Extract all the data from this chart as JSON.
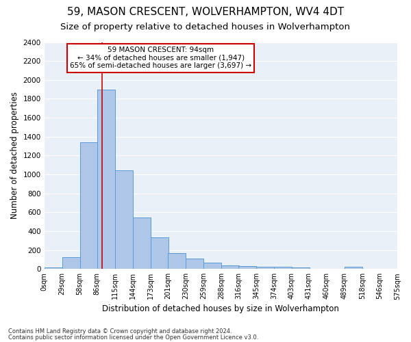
{
  "title1": "59, MASON CRESCENT, WOLVERHAMPTON, WV4 4DT",
  "title2": "Size of property relative to detached houses in Wolverhampton",
  "xlabel": "Distribution of detached houses by size in Wolverhampton",
  "ylabel": "Number of detached properties",
  "annotation_line1": "59 MASON CRESCENT: 94sqm",
  "annotation_line2": "← 34% of detached houses are smaller (1,947)",
  "annotation_line3": "65% of semi-detached houses are larger (3,697) →",
  "property_size_sqm": 94,
  "bin_edges": [
    0,
    29,
    58,
    86,
    115,
    144,
    173,
    201,
    230,
    259,
    288,
    316,
    345,
    374,
    403,
    431,
    460,
    489,
    518,
    546,
    575
  ],
  "bin_labels": [
    "0sqm",
    "29sqm",
    "58sqm",
    "86sqm",
    "115sqm",
    "144sqm",
    "173sqm",
    "201sqm",
    "230sqm",
    "259sqm",
    "288sqm",
    "316sqm",
    "345sqm",
    "374sqm",
    "403sqm",
    "431sqm",
    "460sqm",
    "489sqm",
    "518sqm",
    "546sqm",
    "575sqm"
  ],
  "bar_values": [
    15,
    125,
    1340,
    1895,
    1045,
    545,
    335,
    165,
    110,
    65,
    40,
    30,
    25,
    20,
    15,
    5,
    0,
    20,
    0,
    0,
    15
  ],
  "bar_color": "#aec6e8",
  "bar_edgecolor": "#5b9bd5",
  "vline_color": "#cc0000",
  "vline_x": 94,
  "ylim": [
    0,
    2400
  ],
  "yticks": [
    0,
    200,
    400,
    600,
    800,
    1000,
    1200,
    1400,
    1600,
    1800,
    2000,
    2200,
    2400
  ],
  "bg_color": "#eaf0f8",
  "grid_color": "#ffffff",
  "footnote1": "Contains HM Land Registry data © Crown copyright and database right 2024.",
  "footnote2": "Contains public sector information licensed under the Open Government Licence v3.0.",
  "annotation_box_color": "#cc0000",
  "title1_fontsize": 11,
  "title2_fontsize": 9.5
}
